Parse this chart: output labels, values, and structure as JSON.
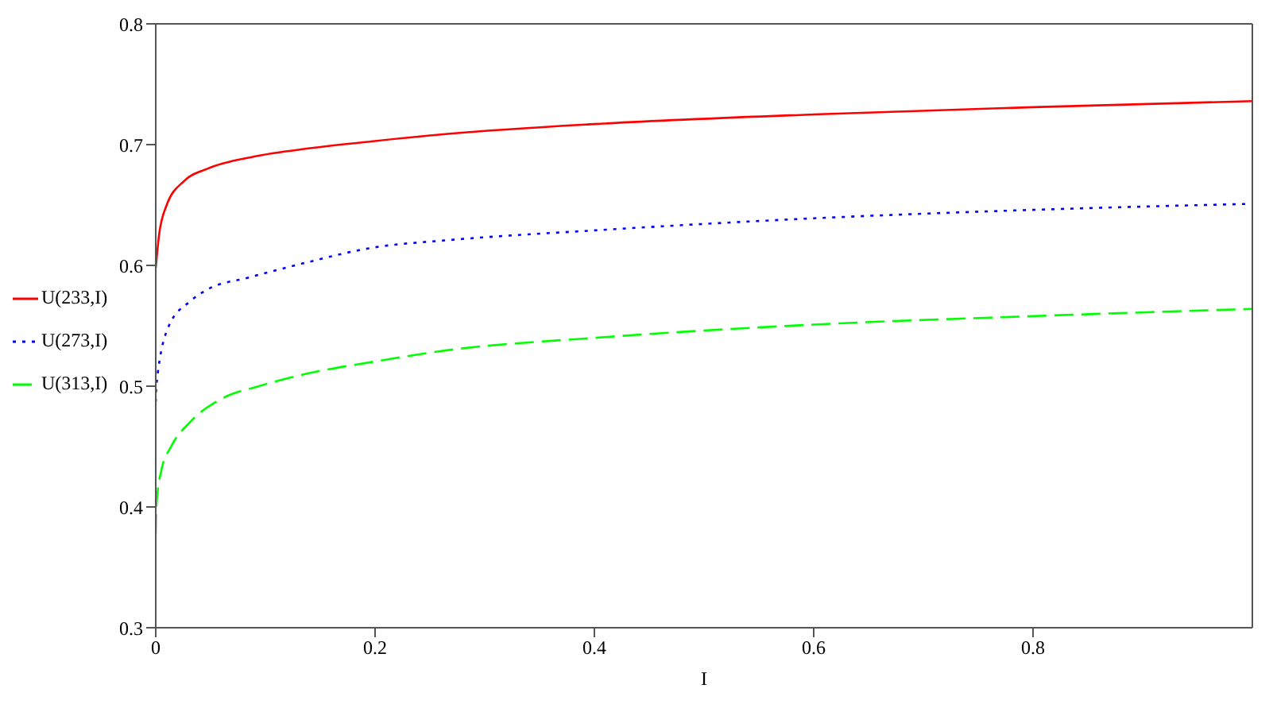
{
  "chart_data": {
    "type": "line",
    "xlabel": "I",
    "xlim": [
      0,
      1
    ],
    "xticks": [
      0,
      0.2,
      0.4,
      0.6,
      0.8
    ],
    "ylim": [
      0.3,
      0.8
    ],
    "yticks": [
      0.3,
      0.4,
      0.5,
      0.6,
      0.7,
      0.8
    ],
    "legend": "left",
    "marker": "none",
    "series": [
      {
        "name": "U(233,I)",
        "color": "#ff0000",
        "line_style": "solid",
        "x": [
          0,
          0.003,
          0.01,
          0.026,
          0.047,
          0.089,
          0.141,
          0.2,
          0.268,
          0.4,
          0.6,
          0.8,
          1
        ],
        "values": [
          0.598,
          0.625,
          0.65,
          0.67,
          0.68,
          0.69,
          0.697,
          0.703,
          0.709,
          0.717,
          0.725,
          0.731,
          0.736
        ]
      },
      {
        "name": "U(273,I)",
        "color": "#0000ff",
        "line_style": "dotted",
        "x": [
          0,
          0.0005,
          0.012,
          0.031,
          0.047,
          0.085,
          0.127,
          0.2,
          0.268,
          0.4,
          0.6,
          0.8,
          1
        ],
        "values": [
          0.487,
          0.5,
          0.55,
          0.57,
          0.58,
          0.59,
          0.6,
          0.615,
          0.621,
          0.629,
          0.639,
          0.646,
          0.651
        ]
      },
      {
        "name": "U(313,I)",
        "color": "#00ff00",
        "line_style": "dashed",
        "x": [
          0,
          0.0005,
          0.005,
          0.014,
          0.031,
          0.061,
          0.094,
          0.136,
          0.197,
          0.268,
          0.4,
          0.6,
          0.8,
          1
        ],
        "values": [
          0.378,
          0.4,
          0.43,
          0.45,
          0.47,
          0.49,
          0.5,
          0.51,
          0.52,
          0.53,
          0.54,
          0.551,
          0.558,
          0.564
        ]
      }
    ]
  }
}
